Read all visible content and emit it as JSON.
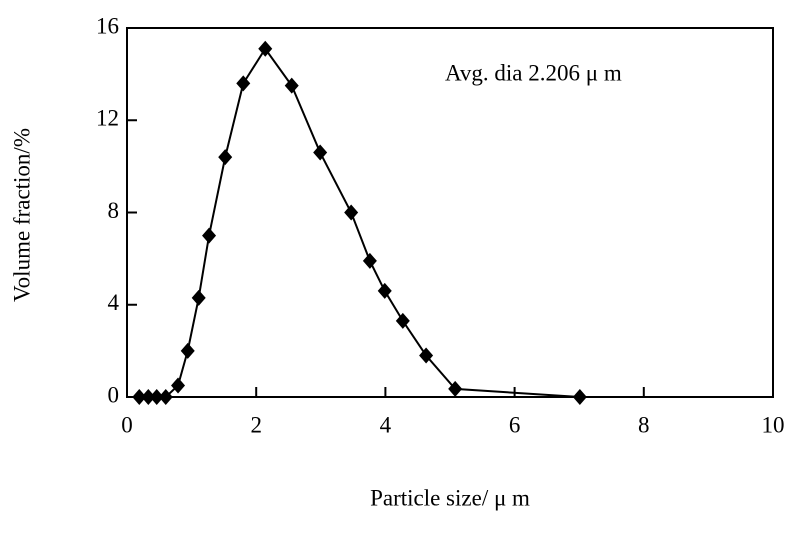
{
  "chart_data": {
    "type": "line",
    "x_label": "Particle size/ μ m",
    "y_label": "Volume fraction/%",
    "annotation": "Avg. dia 2.206  μ m",
    "x": [
      0.19,
      0.33,
      0.46,
      0.6,
      0.79,
      0.94,
      1.11,
      1.27,
      1.52,
      1.8,
      2.14,
      2.55,
      2.99,
      3.47,
      3.76,
      3.99,
      4.27,
      4.63,
      5.08,
      7.01
    ],
    "series": [
      {
        "color": "#000000",
        "values": [
          0,
          0,
          0,
          0,
          0.5,
          2.0,
          4.3,
          7.0,
          10.4,
          13.6,
          15.1,
          13.5,
          10.6,
          8.0,
          5.9,
          4.6,
          3.3,
          1.8,
          0.35,
          0
        ]
      }
    ],
    "xlim": [
      0,
      10
    ],
    "xticks": [
      0,
      2,
      4,
      6,
      8,
      10
    ],
    "ylim": [
      0,
      16
    ],
    "yticks": [
      0,
      4,
      8,
      12,
      16
    ]
  }
}
